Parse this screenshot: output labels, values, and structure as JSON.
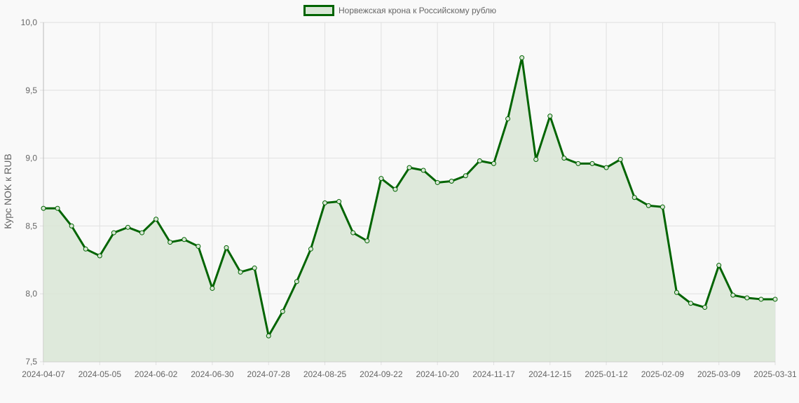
{
  "chart_data": {
    "type": "line",
    "legend": {
      "label": "Норвежская крона к Российскому рублю",
      "placement": "top-center"
    },
    "ylabel": "Курс NOK к RUB",
    "xlabel": "",
    "ylim": [
      7.5,
      10.0
    ],
    "yticks": [
      "7,5",
      "8,0",
      "8,5",
      "9,0",
      "9,5",
      "10,0"
    ],
    "ytick_values": [
      7.5,
      8.0,
      8.5,
      9.0,
      9.5,
      10.0
    ],
    "xticks": [
      "2024-04-07",
      "2024-05-05",
      "2024-06-02",
      "2024-06-30",
      "2024-07-28",
      "2024-08-25",
      "2024-09-22",
      "2024-10-20",
      "2024-11-17",
      "2024-12-15",
      "2025-01-12",
      "2025-02-09",
      "2025-03-09",
      "2025-03-31"
    ],
    "xtick_positions": [
      0,
      4,
      8,
      12,
      16,
      20,
      24,
      28,
      32,
      36,
      40,
      44,
      48,
      52
    ],
    "grid": true,
    "colors": {
      "line": "#006400",
      "fill": "#d9e6d6",
      "grid": "#e0e0e0"
    },
    "series": [
      {
        "name": "Норвежская крона к Российскому рублю",
        "values": [
          8.63,
          8.63,
          8.5,
          8.33,
          8.28,
          8.45,
          8.49,
          8.45,
          8.55,
          8.38,
          8.4,
          8.35,
          8.04,
          8.34,
          8.16,
          8.19,
          7.69,
          7.87,
          8.09,
          8.33,
          8.67,
          8.68,
          8.45,
          8.39,
          8.85,
          8.77,
          8.93,
          8.91,
          8.82,
          8.83,
          8.87,
          8.98,
          8.96,
          9.29,
          9.74,
          8.99,
          9.31,
          9.0,
          8.96,
          8.96,
          8.93,
          8.99,
          8.71,
          8.65,
          8.64,
          8.01,
          7.93,
          7.9,
          8.21,
          7.99,
          7.97,
          7.96,
          7.96
        ]
      }
    ]
  }
}
